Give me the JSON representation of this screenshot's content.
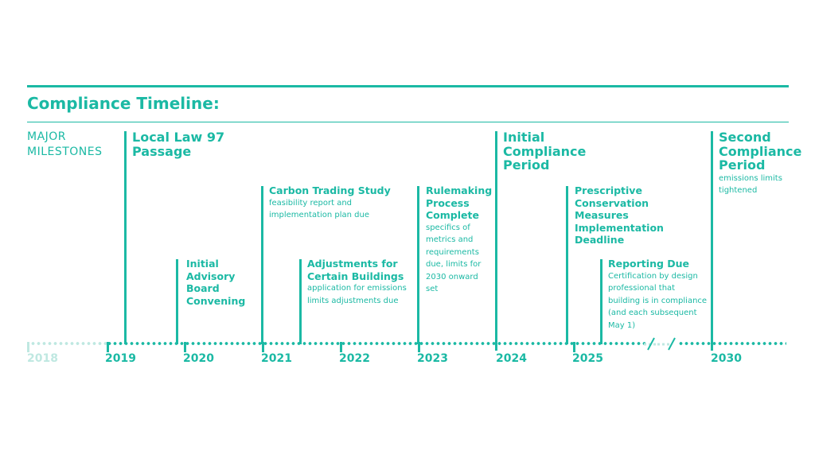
{
  "title": "Compliance Timeline:",
  "side_label": [
    "MAJOR",
    "MILESTONES"
  ],
  "events": [
    {
      "id": "ll97",
      "title": [
        "Local Law 97",
        "Passage"
      ],
      "desc": []
    },
    {
      "id": "advisory",
      "title": [
        "Initial",
        "Advisory",
        "Board",
        "Convening"
      ],
      "desc": []
    },
    {
      "id": "carbon",
      "title": [
        "Carbon Trading Study"
      ],
      "desc": [
        "feasibility report and",
        "implementation plan due"
      ]
    },
    {
      "id": "adjust",
      "title": [
        "Adjustments for",
        "Certain Buildings"
      ],
      "desc": [
        "application for emissions",
        "limits adjustments due"
      ]
    },
    {
      "id": "rulemaking",
      "title": [
        "Rulemaking",
        "Process",
        "Complete"
      ],
      "desc": [
        "specifics of",
        "metrics and",
        "requirements",
        "due, limits for",
        "2030 onward",
        "set"
      ]
    },
    {
      "id": "initial",
      "title": [
        "Initial",
        "Compliance",
        "Period"
      ],
      "desc": []
    },
    {
      "id": "prescriptive",
      "title": [
        "Prescriptive",
        "Conservation",
        "Measures",
        "Implementation",
        "Deadline"
      ],
      "desc": []
    },
    {
      "id": "reporting",
      "title": [
        "Reporting Due"
      ],
      "desc": [
        "Certification by design",
        "professional that",
        "building is in compliance",
        "(and each subsequent",
        "May 1)"
      ]
    },
    {
      "id": "second",
      "title": [
        "Second",
        "Compliance",
        "Period"
      ],
      "desc": [
        "emissions limits",
        "tightened"
      ]
    }
  ],
  "years": [
    "2018",
    "2019",
    "2020",
    "2021",
    "2022",
    "2023",
    "2024",
    "2025",
    "2030"
  ],
  "colors": {
    "accent": "#1bb9a4",
    "faint": "#bfe8e1"
  }
}
